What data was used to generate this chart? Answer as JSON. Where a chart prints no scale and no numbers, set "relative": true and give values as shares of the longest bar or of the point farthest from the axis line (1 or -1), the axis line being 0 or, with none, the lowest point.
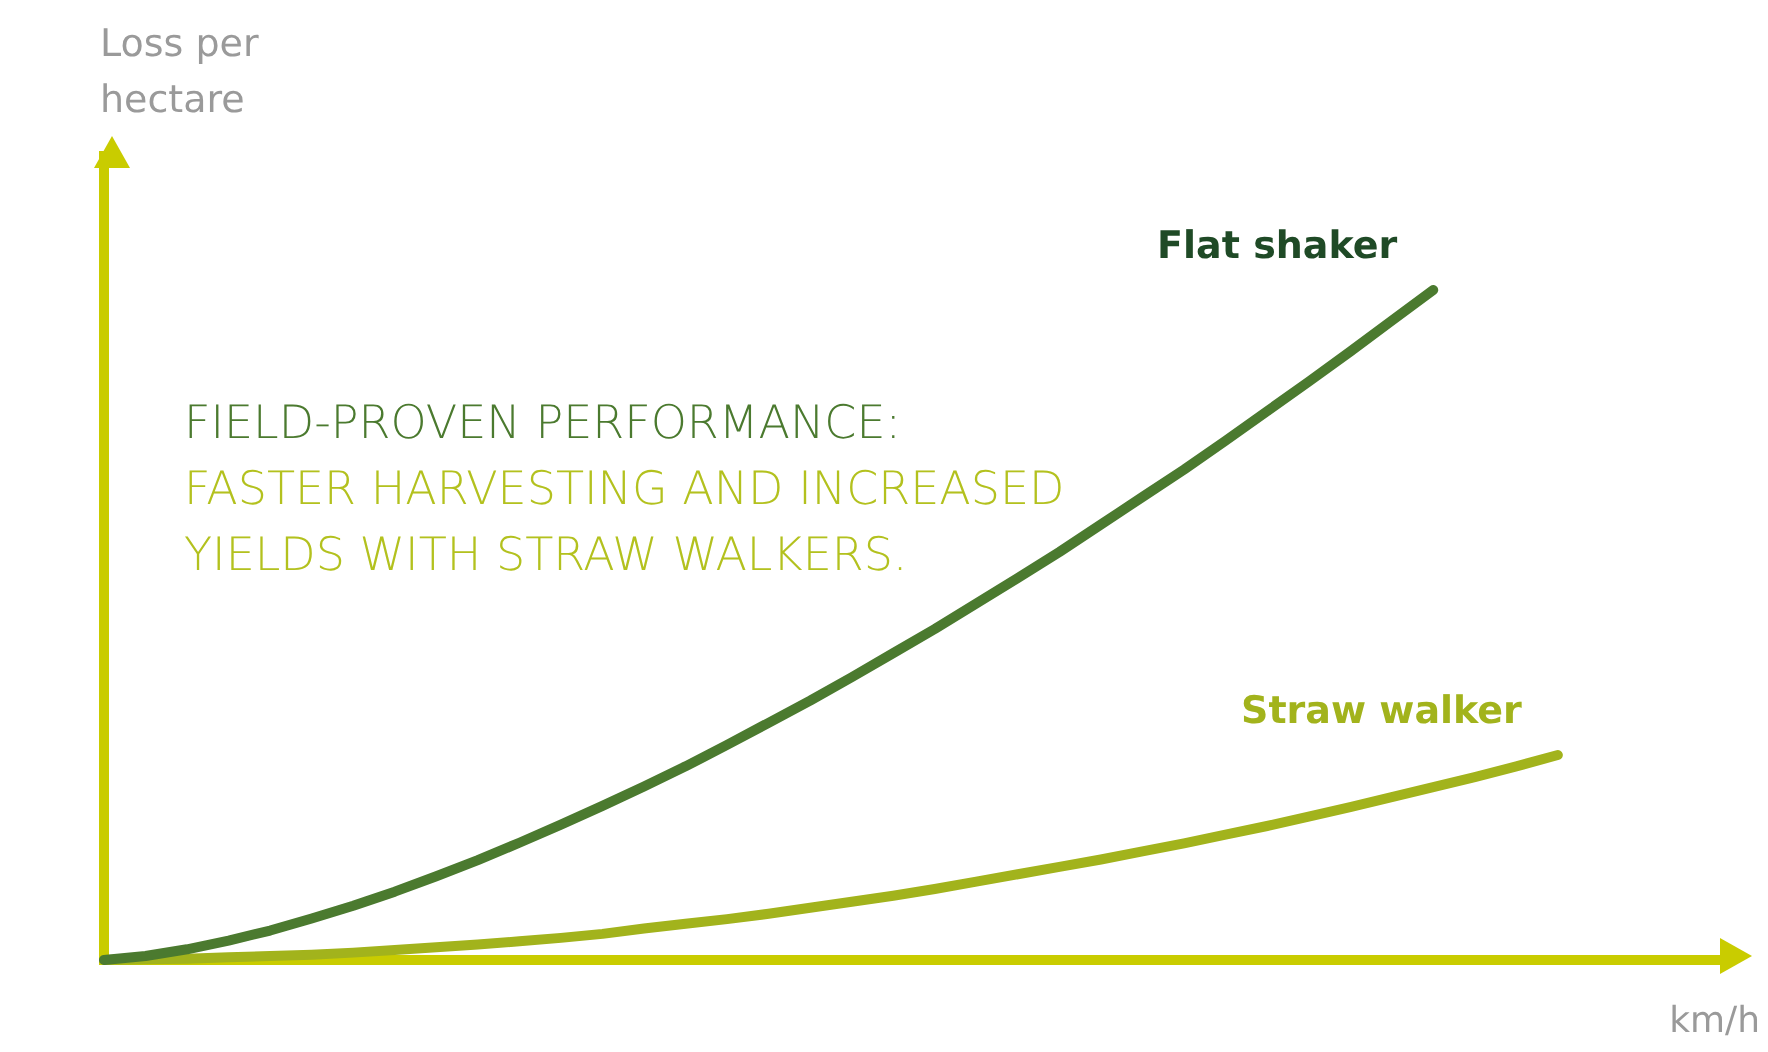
{
  "chart_data": {
    "type": "line",
    "relative": true,
    "title": "FIELD-PROVEN PERFORMANCE:",
    "subtitle": "FASTER HARVESTING AND INCREASED YIELDS WITH STRAW WALKERS.",
    "xlabel": "km/h",
    "ylabel": "Loss per hectare",
    "legend": false,
    "grid": false,
    "tick_labels": false,
    "marker": "none",
    "line_style": "solid",
    "categories": [
      null,
      null,
      null,
      null,
      null,
      null,
      null,
      null,
      null,
      null,
      null,
      null,
      null,
      null,
      null,
      null,
      null,
      null,
      null,
      null,
      null,
      null,
      null,
      null,
      null,
      null,
      null,
      null,
      null,
      null,
      null,
      null,
      null,
      null,
      null,
      null,
      null,
      null,
      null,
      null
    ],
    "series": [
      {
        "name": "Flat shaker",
        "color": "#4b7a2f",
        "values": [
          0,
          0.006,
          0.016,
          0.029,
          0.044,
          0.062,
          0.081,
          0.102,
          0.125,
          0.149,
          0.175,
          0.202,
          0.23,
          0.259,
          0.289,
          0.321,
          0.354,
          0.387,
          0.422,
          0.458,
          0.494,
          0.532,
          0.57,
          0.609,
          0.65,
          0.691,
          0.732,
          0.775,
          0.819,
          0.863,
          0.908,
          0.954,
          1,
          null,
          null,
          null,
          null,
          null,
          null,
          null
        ]
      },
      {
        "name": "Straw walker",
        "color": "#a2b31c",
        "values": [
          0,
          0.001,
          0.002,
          0.004,
          0.006,
          0.008,
          0.011,
          0.015,
          0.019,
          0.023,
          0.028,
          0.033,
          0.039,
          0.047,
          0.054,
          0.061,
          0.069,
          0.078,
          0.087,
          0.096,
          0.106,
          0.117,
          0.128,
          0.139,
          0.15,
          0.162,
          0.174,
          0.187,
          0.2,
          0.214,
          0.228,
          0.243,
          0.258,
          0.273,
          0.289,
          0.306,
          null,
          null,
          null,
          null
        ]
      }
    ]
  }
}
